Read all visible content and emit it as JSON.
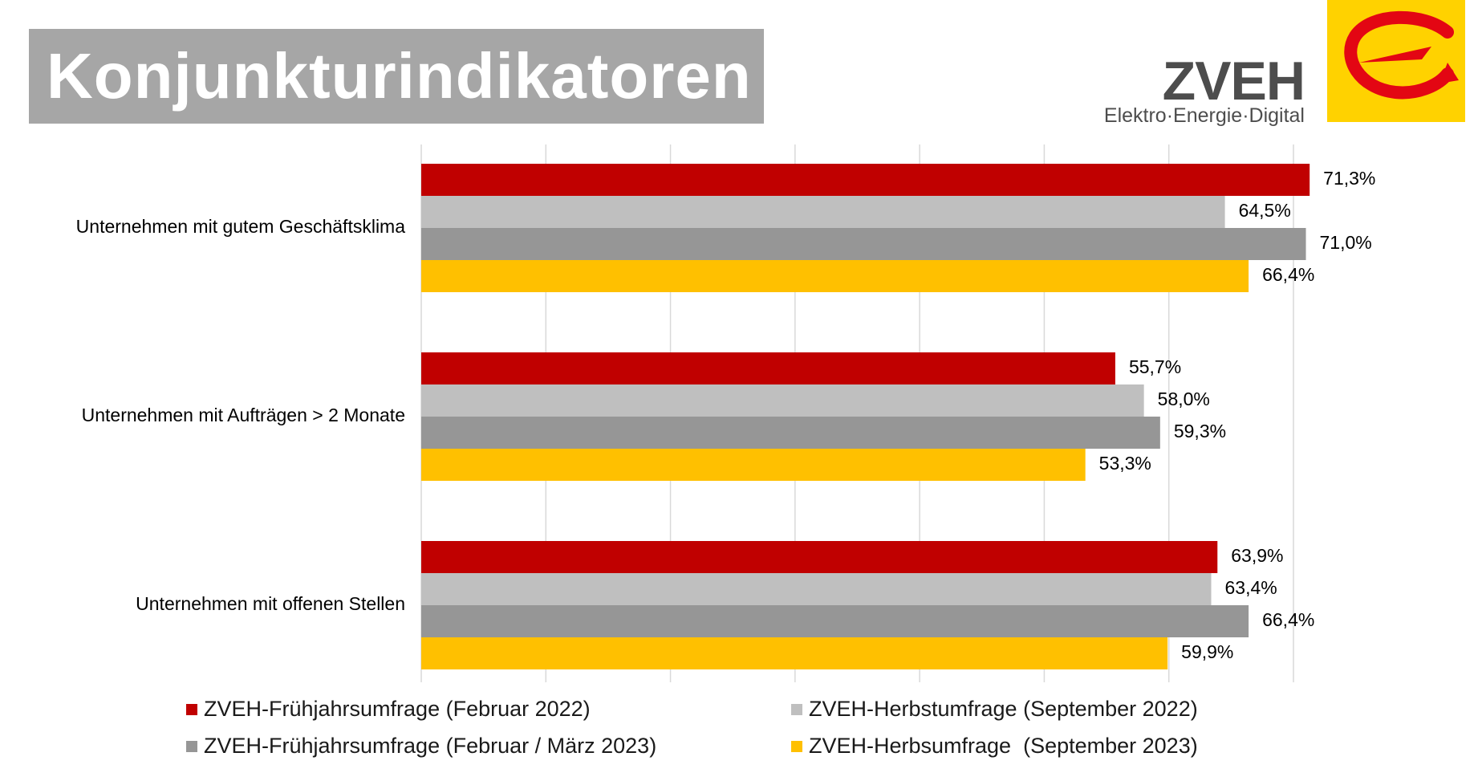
{
  "title": "Konjunkturindikatoren",
  "brand": {
    "name": "ZVEH",
    "tagline": "Elektro·Energie·Digital"
  },
  "colors": {
    "title_background": "#a6a6a6",
    "logo_yellow": "#ffd200",
    "logo_red": "#e30613"
  },
  "chart_data": {
    "type": "bar",
    "orientation": "horizontal",
    "categories": [
      "Unternehmen mit gutem Geschäftsklima",
      "Unternehmen mit Aufträgen > 2 Monate",
      "Unternehmen mit offenen Stellen"
    ],
    "series": [
      {
        "name": "ZVEH-Frühjahrsumfrage (Februar 2022)",
        "color": "#c00000",
        "values": [
          71.3,
          55.7,
          63.9
        ],
        "labels": [
          "71,3%",
          "55,7%",
          "63,9%"
        ]
      },
      {
        "name": "ZVEH-Herbstumfrage (September 2022)",
        "color": "#bfbfbf",
        "values": [
          64.5,
          58.0,
          63.4
        ],
        "labels": [
          "64,5%",
          "58,0%",
          "63,4%"
        ]
      },
      {
        "name": "ZVEH-Frühjahrsumfrage (Februar / März 2023)",
        "color": "#969696",
        "values": [
          71.0,
          59.3,
          66.4
        ],
        "labels": [
          "71,0%",
          "59,3%",
          "66,4%"
        ]
      },
      {
        "name": "ZVEH-Herbsumfrage  (September 2023)",
        "color": "#ffc000",
        "values": [
          66.4,
          53.3,
          59.9
        ],
        "labels": [
          "66,4%",
          "53,3%",
          "59,9%"
        ]
      }
    ],
    "xlim": [
      0,
      70
    ],
    "grid": true,
    "legend_position": "bottom"
  }
}
